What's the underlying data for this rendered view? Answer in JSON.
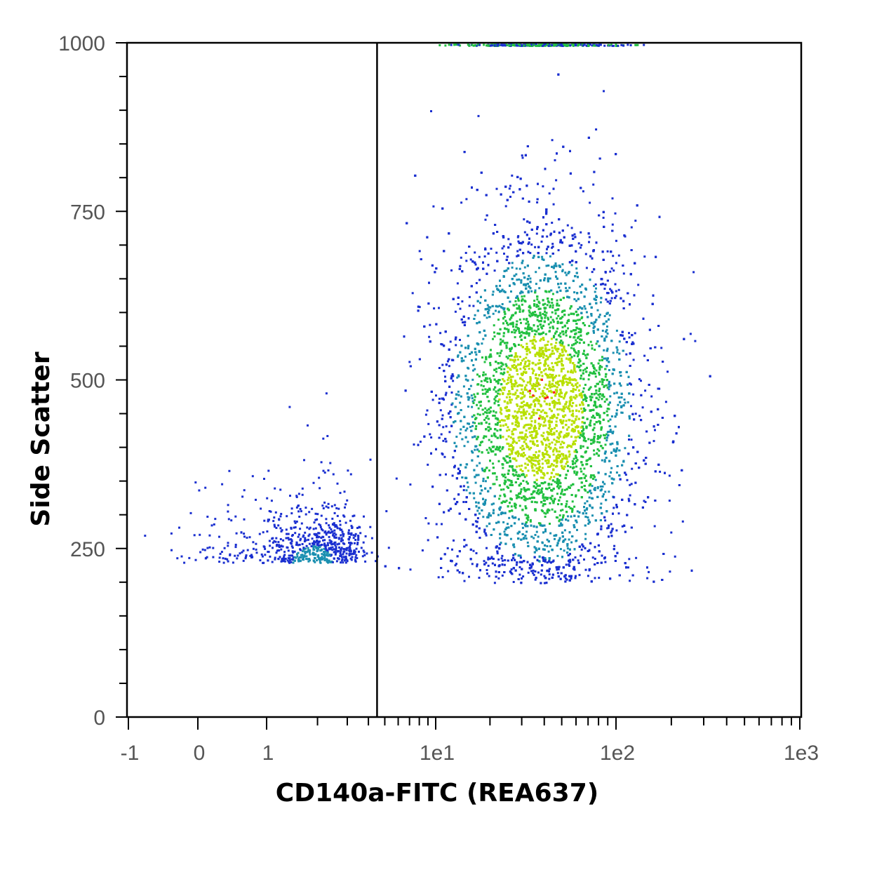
{
  "chart_data": {
    "type": "scatter",
    "title": "",
    "xlabel": "CD140a-FITC (REA637)",
    "ylabel": "Side Scatter",
    "x_scale": "biexponential",
    "x_ticks": [
      {
        "value": -1,
        "label": "-1"
      },
      {
        "value": 0,
        "label": "0"
      },
      {
        "value": 1,
        "label": "1"
      },
      {
        "value": 10,
        "label": "1e1"
      },
      {
        "value": 100,
        "label": "1e2"
      },
      {
        "value": 1000,
        "label": "1e3"
      }
    ],
    "y_ticks": [
      {
        "value": 0,
        "label": "0"
      },
      {
        "value": 250,
        "label": "250"
      },
      {
        "value": 500,
        "label": "500"
      },
      {
        "value": 750,
        "label": "750"
      },
      {
        "value": 1000,
        "label": "1000"
      }
    ],
    "ylim": [
      0,
      1000
    ],
    "gate_x": 4.5,
    "grid": false,
    "density_colors": [
      "#1a2fd0",
      "#1a8fb0",
      "#22c040",
      "#b8e000",
      "#ff2020"
    ],
    "populations": [
      {
        "center_x": 38,
        "center_y": 460,
        "x_spread_log": 0.26,
        "y_spread": 120,
        "share": "main"
      },
      {
        "center_x": 1.9,
        "center_y": 230,
        "x_spread": 0.9,
        "y_spread": 35,
        "share": "minor"
      }
    ]
  }
}
